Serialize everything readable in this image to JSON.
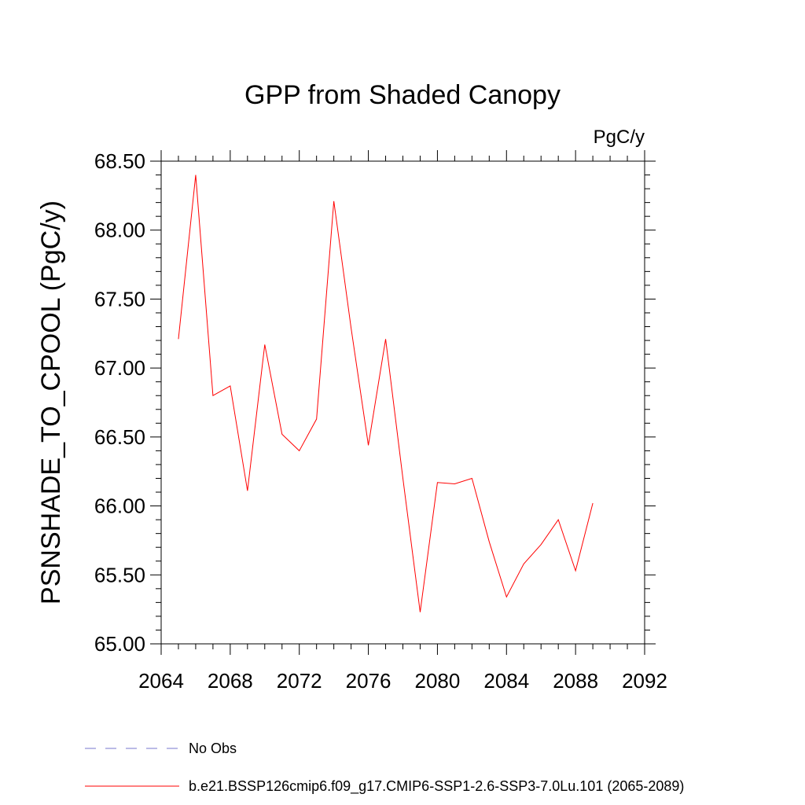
{
  "chart_data": {
    "type": "line",
    "title": "GPP from Shaded Canopy",
    "units": "PgC/y",
    "ylabel": "PSNSHADE_TO_CPOOL  (PgC/y)",
    "xlabel": "",
    "xlim": [
      2064,
      2092
    ],
    "ylim": [
      65.0,
      68.5
    ],
    "xticks": [
      2064,
      2068,
      2072,
      2076,
      2080,
      2084,
      2088,
      2092
    ],
    "xtick_labels": [
      "2064",
      "2068",
      "2072",
      "2076",
      "2080",
      "2084",
      "2088",
      "2092"
    ],
    "yticks": [
      65.0,
      65.5,
      66.0,
      66.5,
      67.0,
      67.5,
      68.0,
      68.5
    ],
    "ytick_labels": [
      "65.00",
      "65.50",
      "66.00",
      "66.50",
      "67.00",
      "67.50",
      "68.00",
      "68.50"
    ],
    "grid": false,
    "legend_position": "bottom",
    "series": [
      {
        "name": "b.e21.BSSP126cmip6.f09_g17.CMIP6-SSP1-2.6-SSP3-7.0Lu.101 (2065-2089)",
        "color": "#ff0000",
        "style": "solid",
        "x": [
          2065,
          2066,
          2067,
          2068,
          2069,
          2070,
          2071,
          2072,
          2073,
          2074,
          2075,
          2076,
          2077,
          2078,
          2079,
          2080,
          2081,
          2082,
          2083,
          2084,
          2085,
          2086,
          2087,
          2088,
          2089
        ],
        "y": [
          67.21,
          68.4,
          66.8,
          66.87,
          66.11,
          67.17,
          66.52,
          66.4,
          66.63,
          68.21,
          67.29,
          66.44,
          67.21,
          66.2,
          65.23,
          66.17,
          66.16,
          66.2,
          65.74,
          65.34,
          65.58,
          65.72,
          65.9,
          65.53,
          66.02
        ]
      }
    ],
    "legend": [
      {
        "label": "No Obs",
        "color": "#7777cc",
        "style": "dashed"
      },
      {
        "label": "b.e21.BSSP126cmip6.f09_g17.CMIP6-SSP1-2.6-SSP3-7.0Lu.101 (2065-2089)",
        "color": "#ff0000",
        "style": "solid"
      }
    ]
  }
}
